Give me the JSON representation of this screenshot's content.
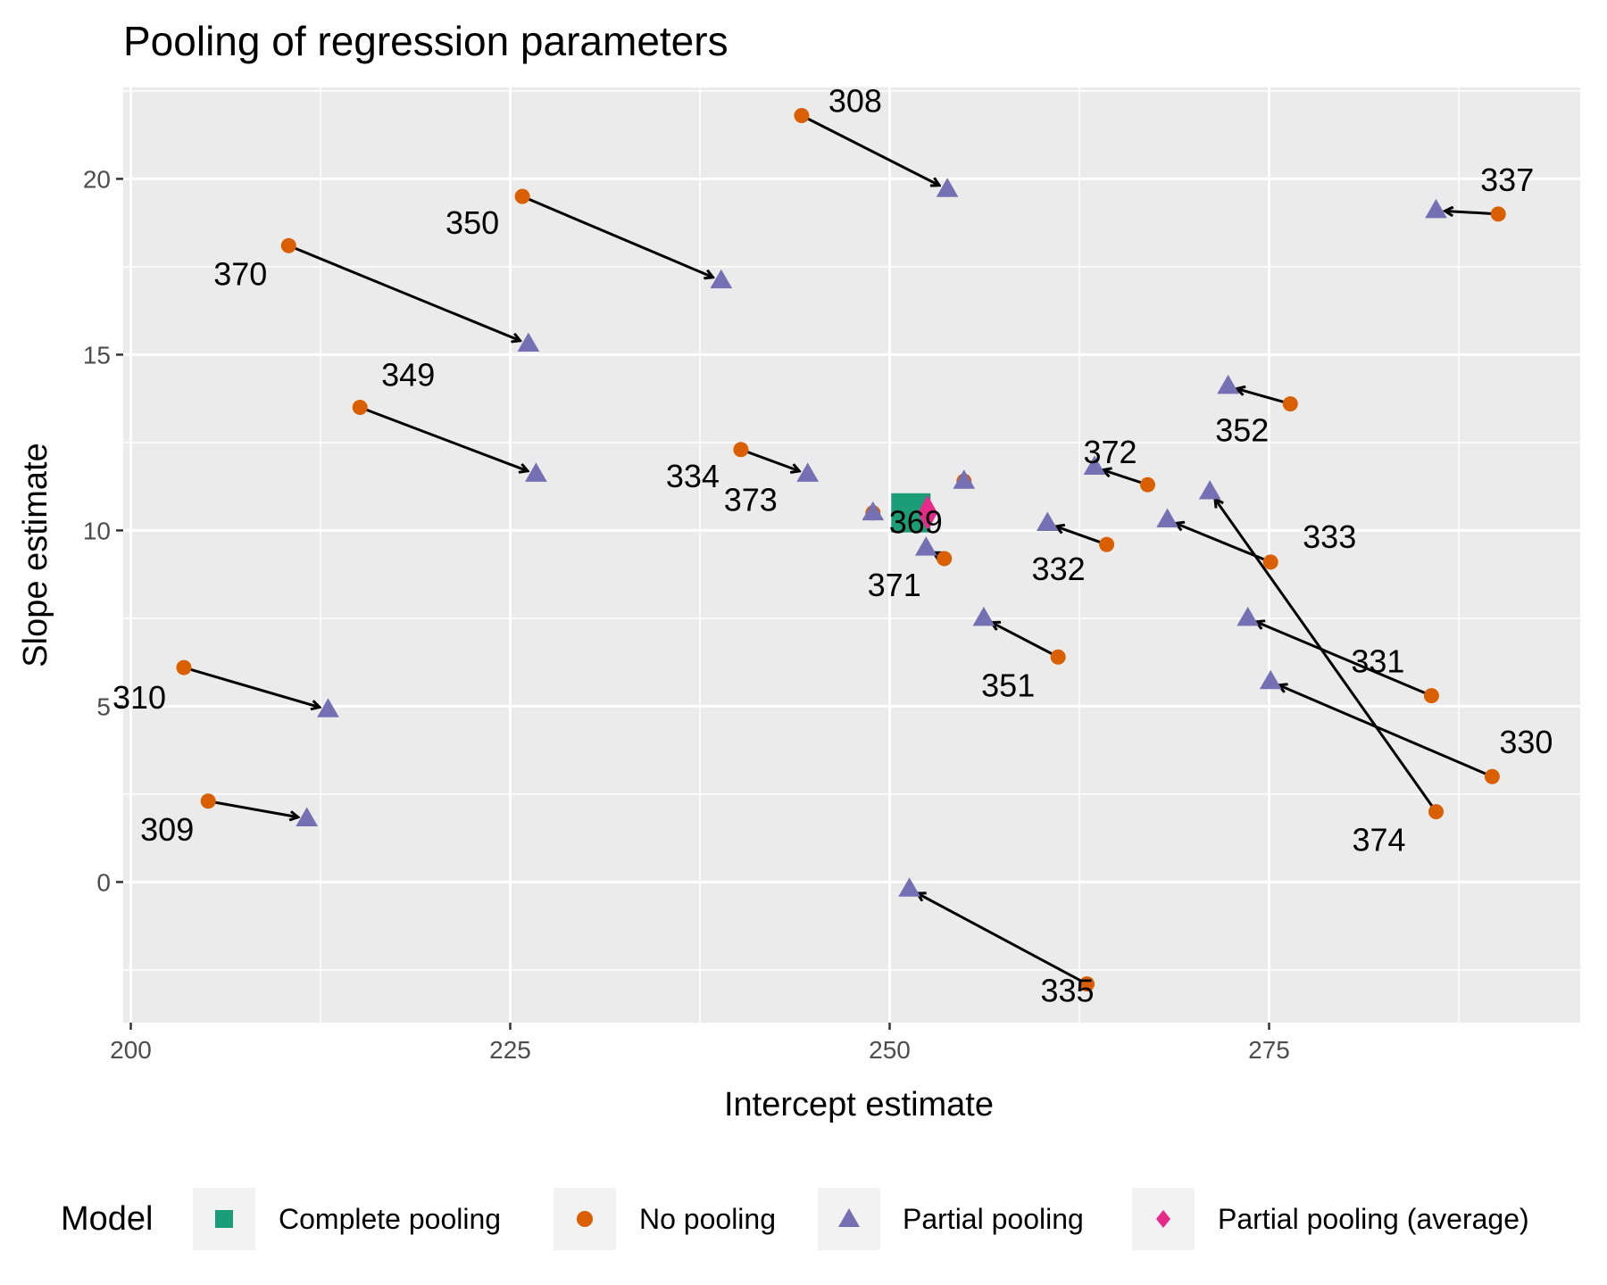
{
  "chart_data": {
    "type": "scatter",
    "title": "Pooling of regression parameters",
    "xlabel": "Intercept estimate",
    "ylabel": "Slope estimate",
    "xlim": [
      199.5,
      295.5
    ],
    "ylim": [
      -4.0,
      22.6
    ],
    "x_ticks": [
      200,
      225,
      250,
      275
    ],
    "y_ticks": [
      0,
      5,
      10,
      15,
      20
    ],
    "x_tick_labels": [
      "200",
      "225",
      "250",
      "275"
    ],
    "y_tick_labels": [
      "0",
      "5",
      "10",
      "15",
      "20"
    ],
    "grid": true,
    "legend": {
      "title": "Model",
      "position": "bottom",
      "entries": [
        {
          "label": "Complete pooling",
          "shape": "square",
          "color": "#1b9e77"
        },
        {
          "label": "No pooling",
          "shape": "circle",
          "color": "#d95f02"
        },
        {
          "label": "Partial pooling",
          "shape": "triangle",
          "color": "#7570b3"
        },
        {
          "label": "Partial pooling (average)",
          "shape": "diamond",
          "color": "#e7298a"
        }
      ]
    },
    "complete_pooling": {
      "x": 251.4,
      "y": 10.5
    },
    "partial_pooling_average": {
      "x": 252.5,
      "y": 10.5
    },
    "subjects": [
      {
        "id": "308",
        "no_pooling": [
          244.2,
          21.8
        ],
        "partial_pooling": [
          253.8,
          19.7
        ]
      },
      {
        "id": "309",
        "no_pooling": [
          205.1,
          2.3
        ],
        "partial_pooling": [
          211.6,
          1.8
        ]
      },
      {
        "id": "310",
        "no_pooling": [
          203.5,
          6.1
        ],
        "partial_pooling": [
          213.0,
          4.9
        ]
      },
      {
        "id": "330",
        "no_pooling": [
          289.7,
          3.0
        ],
        "partial_pooling": [
          275.1,
          5.7
        ]
      },
      {
        "id": "331",
        "no_pooling": [
          285.7,
          5.3
        ],
        "partial_pooling": [
          273.6,
          7.5
        ]
      },
      {
        "id": "332",
        "no_pooling": [
          264.3,
          9.6
        ],
        "partial_pooling": [
          260.4,
          10.2
        ]
      },
      {
        "id": "333",
        "no_pooling": [
          275.1,
          9.1
        ],
        "partial_pooling": [
          268.3,
          10.3
        ]
      },
      {
        "id": "334",
        "no_pooling": [
          240.2,
          12.3
        ],
        "partial_pooling": [
          244.6,
          11.6
        ]
      },
      {
        "id": "335",
        "no_pooling": [
          263.0,
          -2.9
        ],
        "partial_pooling": [
          251.3,
          -0.2
        ]
      },
      {
        "id": "337",
        "no_pooling": [
          290.1,
          19.0
        ],
        "partial_pooling": [
          286.0,
          19.1
        ]
      },
      {
        "id": "349",
        "no_pooling": [
          215.1,
          13.5
        ],
        "partial_pooling": [
          226.7,
          11.6
        ]
      },
      {
        "id": "350",
        "no_pooling": [
          225.8,
          19.5
        ],
        "partial_pooling": [
          238.9,
          17.1
        ]
      },
      {
        "id": "351",
        "no_pooling": [
          261.1,
          6.4
        ],
        "partial_pooling": [
          256.2,
          7.5
        ]
      },
      {
        "id": "352",
        "no_pooling": [
          276.4,
          13.6
        ],
        "partial_pooling": [
          272.3,
          14.1
        ]
      },
      {
        "id": "369",
        "no_pooling": [
          254.9,
          11.4
        ],
        "partial_pooling": [
          254.9,
          11.4
        ]
      },
      {
        "id": "370",
        "no_pooling": [
          210.4,
          18.1
        ],
        "partial_pooling": [
          226.2,
          15.3
        ]
      },
      {
        "id": "371",
        "no_pooling": [
          253.6,
          9.2
        ],
        "partial_pooling": [
          252.4,
          9.5
        ]
      },
      {
        "id": "372",
        "no_pooling": [
          267.0,
          11.3
        ],
        "partial_pooling": [
          263.5,
          11.8
        ]
      },
      {
        "id": "373",
        "no_pooling": [
          248.9,
          10.5
        ],
        "partial_pooling": [
          248.9,
          10.5
        ]
      },
      {
        "id": "374",
        "no_pooling": [
          286.0,
          2.0
        ],
        "partial_pooling": [
          271.1,
          11.1
        ]
      }
    ]
  }
}
